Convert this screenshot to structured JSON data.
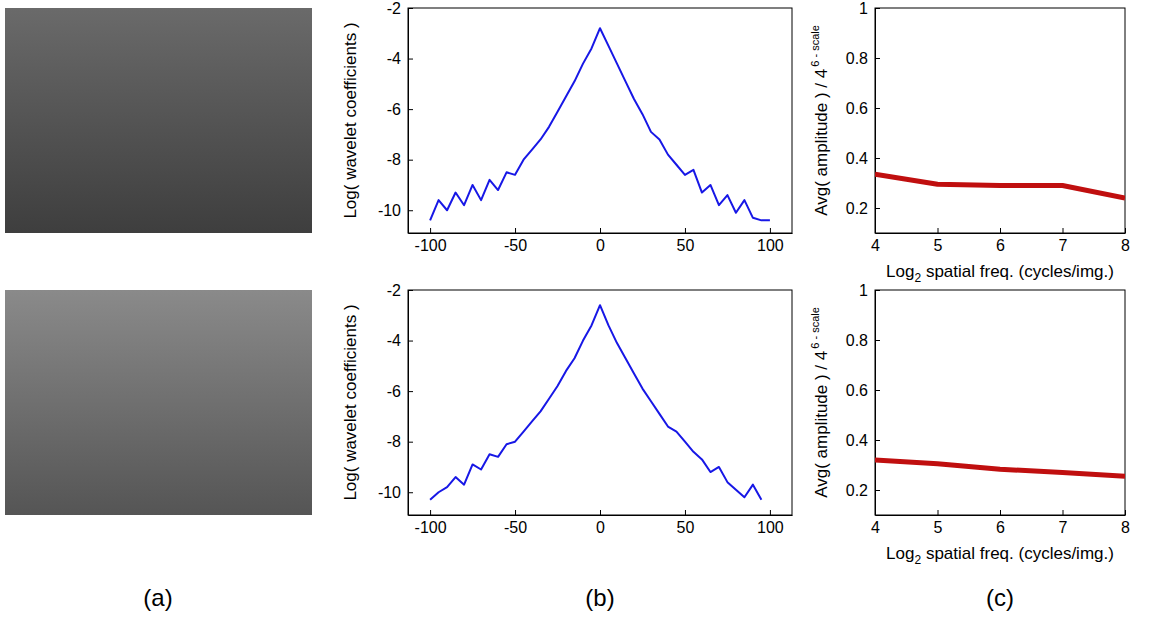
{
  "panel_labels": [
    "(a)",
    "(b)",
    "(c)"
  ],
  "chart_data": [
    {
      "type": "line",
      "y_label": "Log( wavelet coefficients )",
      "x": [
        -100,
        -95,
        -90,
        -85,
        -80,
        -75,
        -70,
        -65,
        -60,
        -55,
        -50,
        -45,
        -40,
        -35,
        -30,
        -25,
        -20,
        -15,
        -10,
        -5,
        0,
        5,
        10,
        15,
        20,
        25,
        30,
        35,
        40,
        45,
        50,
        55,
        60,
        65,
        70,
        75,
        80,
        85,
        90,
        95,
        100
      ],
      "series": [
        {
          "name": null,
          "color": "#1717e6",
          "values": [
            -10.4,
            -9.6,
            -10.0,
            -9.3,
            -9.8,
            -9.0,
            -9.6,
            -8.8,
            -9.2,
            -8.5,
            -8.6,
            -8.0,
            -7.6,
            -7.2,
            -6.7,
            -6.1,
            -5.5,
            -4.9,
            -4.2,
            -3.6,
            -2.8,
            -3.5,
            -4.2,
            -4.9,
            -5.6,
            -6.2,
            -6.9,
            -7.2,
            -7.8,
            -8.2,
            -8.6,
            -8.4,
            -9.3,
            -9.0,
            -9.8,
            -9.4,
            -10.1,
            -9.6,
            -10.3,
            -10.4,
            -10.4
          ]
        }
      ],
      "xlim": [
        -113,
        113
      ],
      "xticks": [
        -100,
        -50,
        0,
        50,
        100
      ],
      "ylim": [
        -10.9,
        -2
      ],
      "yticks": [
        -10,
        -8,
        -6,
        -4,
        -2
      ]
    },
    {
      "type": "line",
      "x_label": {
        "base": "Log",
        "subscript": "2",
        "tail": " spatial freq. (cycles/img.)"
      },
      "y_label": {
        "base": "Avg( amplitude ) / 4",
        "superscript": "6 - scale"
      },
      "x": [
        4,
        5,
        6,
        7,
        8
      ],
      "series": [
        {
          "name": null,
          "color": "#c00f0f",
          "values": [
            0.335,
            0.295,
            0.29,
            0.29,
            0.24
          ]
        }
      ],
      "xlim": [
        4,
        8
      ],
      "xticks": [
        4,
        5,
        6,
        7,
        8
      ],
      "ylim": [
        0.1,
        1
      ],
      "yticks": [
        0.2,
        0.4,
        0.6,
        0.8,
        1
      ]
    },
    {
      "type": "line",
      "y_label": "Log( wavelet coefficients )",
      "x": [
        -100,
        -95,
        -90,
        -85,
        -80,
        -75,
        -70,
        -65,
        -60,
        -55,
        -50,
        -45,
        -40,
        -35,
        -30,
        -25,
        -20,
        -15,
        -10,
        -5,
        0,
        5,
        10,
        15,
        20,
        25,
        30,
        35,
        40,
        45,
        50,
        55,
        60,
        65,
        70,
        75,
        80,
        85,
        90,
        95,
        100
      ],
      "series": [
        {
          "name": null,
          "color": "#1717e6",
          "values": [
            -10.3,
            -10.0,
            -9.8,
            -9.4,
            -9.7,
            -8.9,
            -9.1,
            -8.5,
            -8.6,
            -8.1,
            -8.0,
            -7.6,
            -7.2,
            -6.8,
            -6.3,
            -5.8,
            -5.2,
            -4.7,
            -4.0,
            -3.4,
            -2.6,
            -3.4,
            -4.1,
            -4.7,
            -5.3,
            -5.9,
            -6.4,
            -6.9,
            -7.4,
            -7.6,
            -8.0,
            -8.4,
            -8.7,
            -9.2,
            -9.0,
            -9.6,
            -9.9,
            -10.2,
            -9.7,
            -10.3,
            null
          ]
        }
      ],
      "xlim": [
        -113,
        113
      ],
      "xticks": [
        -100,
        -50,
        0,
        50,
        100
      ],
      "ylim": [
        -10.9,
        -2
      ],
      "yticks": [
        -10,
        -8,
        -6,
        -4,
        -2
      ]
    },
    {
      "type": "line",
      "x_label": {
        "base": "Log",
        "subscript": "2",
        "tail": " spatial freq. (cycles/img.)"
      },
      "y_label": {
        "base": "Avg( amplitude ) / 4",
        "superscript": "6 - scale"
      },
      "x": [
        4,
        5,
        6,
        7,
        8
      ],
      "series": [
        {
          "name": null,
          "color": "#c00f0f",
          "values": [
            0.32,
            0.305,
            0.283,
            0.27,
            0.255
          ]
        }
      ],
      "xlim": [
        4,
        8
      ],
      "xticks": [
        4,
        5,
        6,
        7,
        8
      ],
      "ylim": [
        0.1,
        1
      ],
      "yticks": [
        0.2,
        0.4,
        0.6,
        0.8,
        1
      ]
    }
  ]
}
